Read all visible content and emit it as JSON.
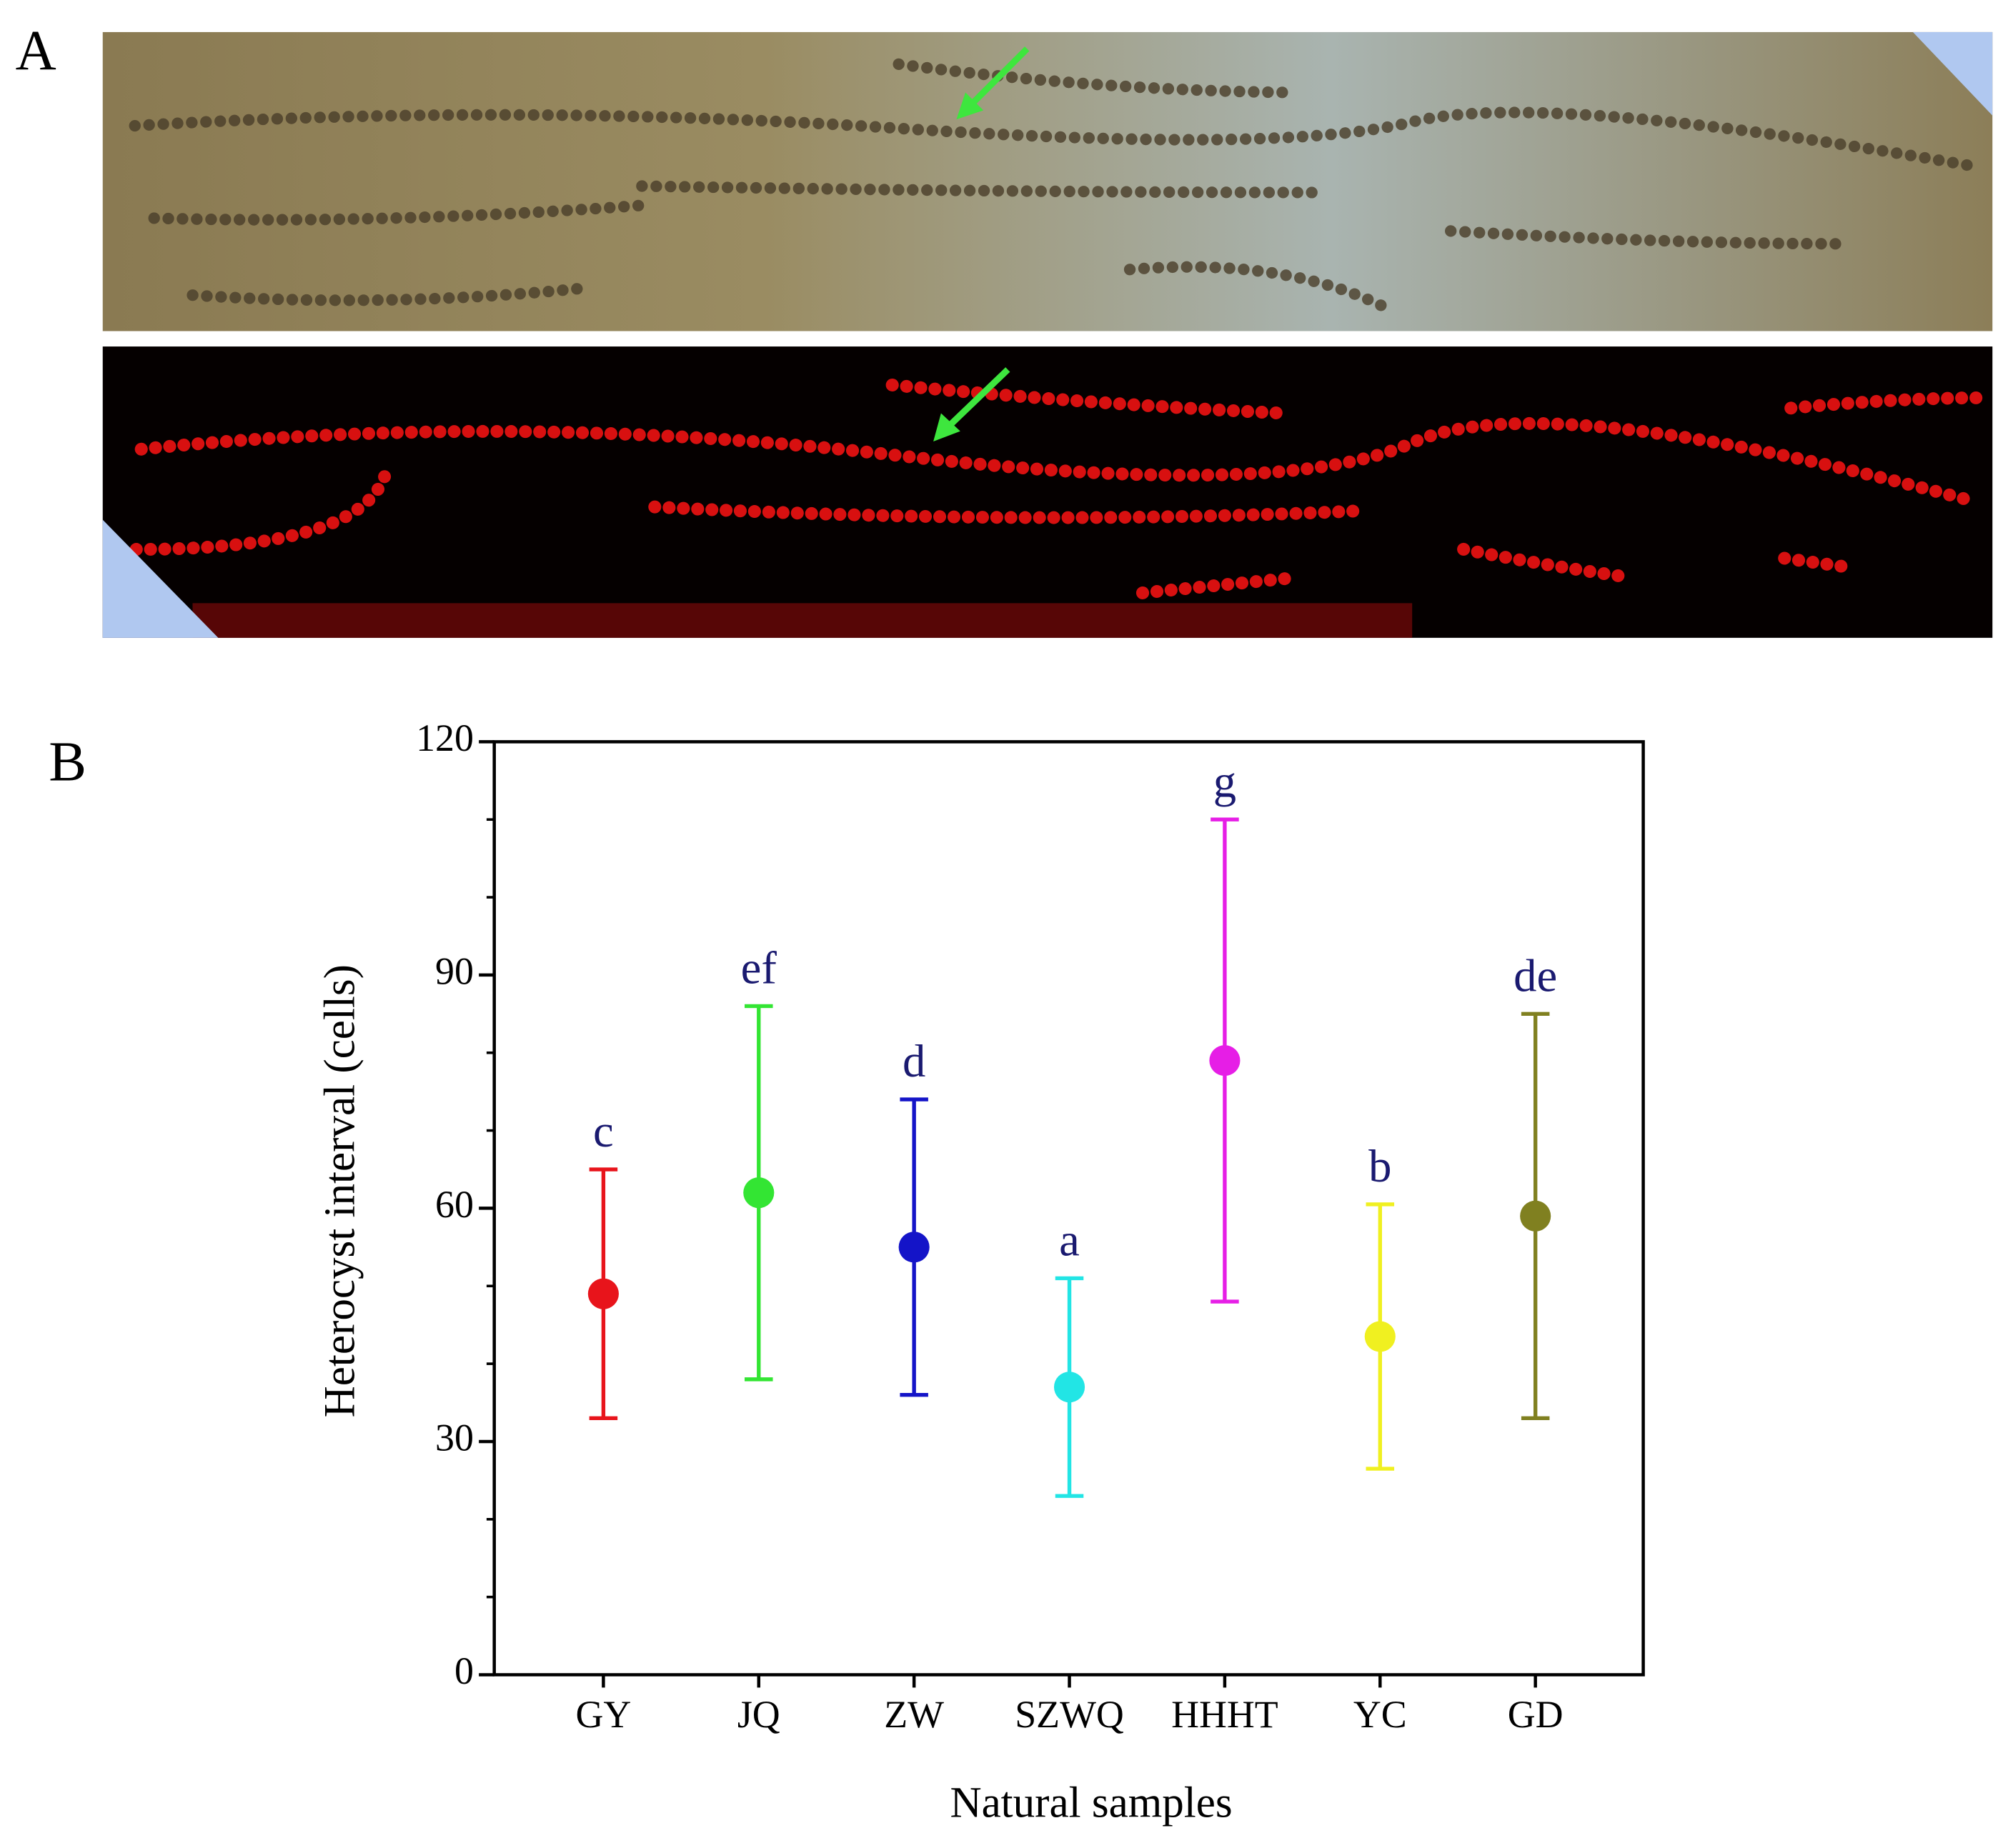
{
  "panel_a": {
    "label": "A"
  },
  "chart_data": {
    "type": "errorbar",
    "panel_label": "B",
    "x_label": "Natural samples",
    "y_label": "Heterocyst interval (cells)",
    "categories": [
      "GY",
      "JQ",
      "ZW",
      "SZWQ",
      "HHHT",
      "YC",
      "GD"
    ],
    "values": [
      49,
      62,
      55,
      37,
      79,
      43.5,
      59
    ],
    "errors": [
      16,
      24,
      19,
      14,
      31,
      17,
      26
    ],
    "colors": [
      "#e8141b",
      "#33e533",
      "#1414c8",
      "#22e5e5",
      "#e61ee6",
      "#f0f020",
      "#808020"
    ],
    "annotations": [
      "c",
      "ef",
      "d",
      "a",
      "g",
      "b",
      "de"
    ],
    "annotation_color": "#1a1a70",
    "ylim": [
      0,
      120
    ],
    "yticks": [
      0,
      30,
      60,
      90,
      120
    ],
    "yminor_ticks": [
      10,
      20,
      40,
      50,
      70,
      80,
      100,
      110
    ]
  }
}
